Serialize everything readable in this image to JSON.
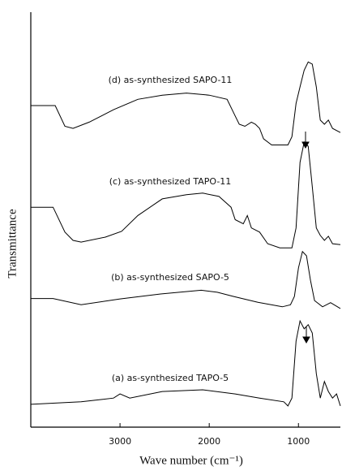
{
  "chart_data": {
    "type": "line",
    "x_label": "Wave number (cm⁻¹)",
    "y_label": "Transmittance",
    "xlim": [
      4000,
      530
    ],
    "xticks": [
      3000,
      2000,
      1000
    ],
    "ylim": [
      0,
      100
    ],
    "series": [
      {
        "name": "(d) as-synthesized SAPO-11",
        "color": "#000000",
        "x": [
          4000,
          3727,
          3618,
          3527,
          3345,
          3073,
          2800,
          2527,
          2255,
          2000,
          1800,
          1709,
          1664,
          1600,
          1527,
          1482,
          1436,
          1391,
          1300,
          1118,
          1073,
          1027,
          982,
          936,
          891,
          845,
          800,
          755,
          709,
          664,
          618,
          530
        ],
        "values": [
          77.5,
          77.5,
          72.5,
          72,
          73.5,
          76.5,
          79,
          80,
          80.5,
          80,
          79,
          75,
          73,
          72.5,
          73.5,
          73,
          72,
          69.5,
          68,
          68,
          70,
          78,
          82,
          86,
          88,
          87.5,
          82,
          74,
          73,
          74,
          72,
          71
        ]
      },
      {
        "name": "(c) as-synthesized TAPO-11",
        "color": "#000000",
        "x": [
          4000,
          3750,
          3618,
          3527,
          3436,
          3164,
          2982,
          2800,
          2527,
          2255,
          2073,
          1891,
          1755,
          1709,
          1618,
          1573,
          1527,
          1436,
          1345,
          1209,
          1073,
          1027,
          982,
          936,
          891,
          845,
          800,
          755,
          709,
          664,
          618,
          530
        ],
        "values": [
          53,
          53,
          47,
          45,
          44.6,
          45.8,
          47.2,
          51,
          55,
          56,
          56.4,
          55.6,
          53,
          50,
          49,
          51,
          48,
          47,
          44.2,
          43.2,
          43.2,
          48,
          63.8,
          68.7,
          67.7,
          58,
          48,
          46.2,
          45,
          46,
          44.2,
          44
        ]
      },
      {
        "name": "(b) as-synthesized SAPO-5",
        "color": "#000000",
        "x": [
          4000,
          3750,
          3436,
          3000,
          2545,
          2090,
          1910,
          1730,
          1455,
          1180,
          1090,
          1045,
          1000,
          955,
          910,
          865,
          820,
          730,
          640,
          530
        ],
        "values": [
          31,
          31,
          29.5,
          30.9,
          32.1,
          33,
          32.5,
          31.5,
          30.1,
          29,
          29.5,
          31.5,
          38.4,
          42.3,
          41.3,
          35.4,
          30.5,
          29,
          30,
          28.6
        ]
      },
      {
        "name": "(a) as-synthesized TAPO-5",
        "color": "#000000",
        "x": [
          4000,
          3436,
          3073,
          3000,
          2891,
          2527,
          2073,
          1709,
          1436,
          1164,
          1118,
          1073,
          1027,
          982,
          936,
          891,
          845,
          800,
          755,
          709,
          664,
          618,
          573,
          530
        ],
        "values": [
          5.5,
          6.1,
          7,
          8,
          7,
          8.6,
          9,
          8,
          7,
          6.1,
          5.1,
          7,
          20.7,
          25.6,
          23.7,
          24.7,
          22.7,
          12.9,
          7,
          11,
          8.6,
          7,
          8,
          5.1
        ]
      }
    ]
  }
}
